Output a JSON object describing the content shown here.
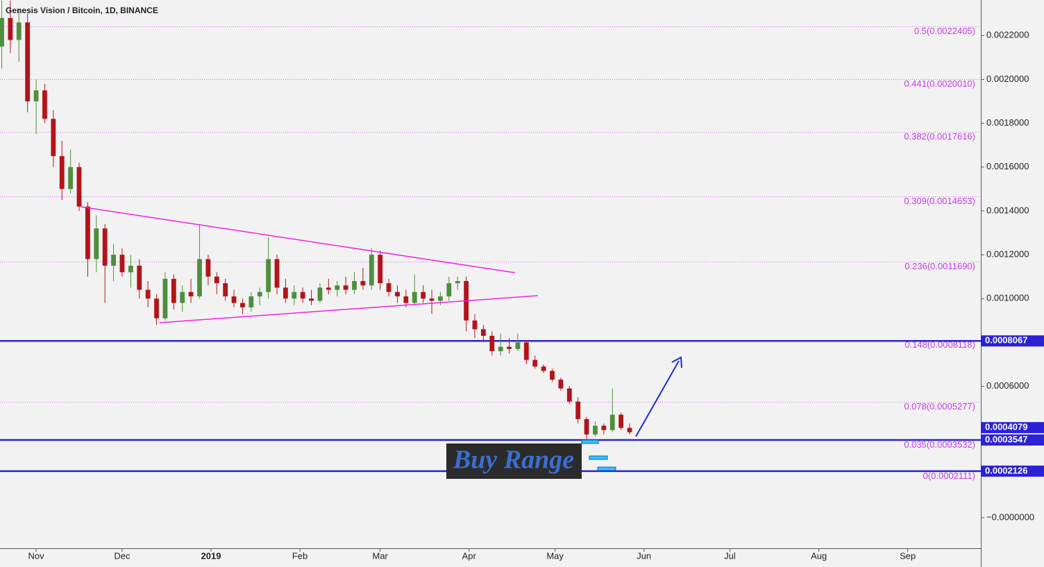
{
  "chart_data": {
    "type": "candlestick",
    "title": "Genesis Vision / Bitcoin, 1D, BINANCE",
    "annotation": "Buy Range",
    "up_color": "#4e8f3e",
    "down_color": "#b3141a",
    "fib_color": "#c33be8",
    "price_line_color": "#2b22d6",
    "x": [
      1,
      4,
      7,
      10,
      13,
      16,
      19,
      22,
      25,
      28,
      31,
      34,
      37,
      40,
      43,
      46,
      49,
      52,
      55,
      58,
      61,
      64,
      67,
      70,
      73,
      76,
      79,
      82,
      85,
      88,
      91,
      94,
      97,
      100,
      103,
      106,
      109,
      112,
      115,
      118,
      121,
      124,
      127,
      130,
      133,
      136,
      139,
      142,
      145,
      148,
      151,
      154,
      157,
      160,
      163,
      166,
      169,
      172,
      175,
      178,
      181,
      184,
      187,
      190,
      193,
      196,
      199,
      202,
      205,
      208,
      211,
      214,
      217,
      220
    ],
    "open": [
      0.00215,
      0.00228,
      0.00218,
      0.00226,
      0.0019,
      0.00195,
      0.00182,
      0.00165,
      0.0015,
      0.0016,
      0.00142,
      0.00118,
      0.00132,
      0.00115,
      0.0012,
      0.00112,
      0.00115,
      0.00104,
      0.001,
      0.00091,
      0.00109,
      0.00098,
      0.00103,
      0.00101,
      0.00118,
      0.0011,
      0.00107,
      0.00101,
      0.00098,
      0.00096,
      0.00101,
      0.00103,
      0.00118,
      0.00105,
      0.001,
      0.00103,
      0.001,
      0.00099,
      0.00105,
      0.00104,
      0.00106,
      0.00104,
      0.00108,
      0.00106,
      0.0012,
      0.00107,
      0.00103,
      0.00101,
      0.00098,
      0.00103,
      0.001,
      0.00099,
      0.00101,
      0.00107,
      0.00108,
      0.0009,
      0.00086,
      0.00083,
      0.00076,
      0.00078,
      0.00077,
      0.0008,
      0.00072,
      0.00069,
      0.00067,
      0.00063,
      0.00059,
      0.00053,
      0.00045,
      0.00038,
      0.00042,
      0.0004,
      0.00047,
      0.00041
    ],
    "high": [
      0.00236,
      0.00236,
      0.00232,
      0.0023,
      0.002,
      0.00198,
      0.00186,
      0.00172,
      0.00168,
      0.00162,
      0.00144,
      0.00138,
      0.00134,
      0.00125,
      0.00123,
      0.0012,
      0.00118,
      0.00108,
      0.00102,
      0.00112,
      0.00111,
      0.00106,
      0.00109,
      0.00134,
      0.0012,
      0.00112,
      0.00109,
      0.00104,
      0.001,
      0.00103,
      0.00105,
      0.00128,
      0.0012,
      0.00109,
      0.00106,
      0.00105,
      0.00104,
      0.00107,
      0.00109,
      0.00108,
      0.0011,
      0.00112,
      0.00114,
      0.00123,
      0.00122,
      0.00109,
      0.00106,
      0.00104,
      0.00111,
      0.00106,
      0.00104,
      0.00103,
      0.0011,
      0.0011,
      0.0011,
      0.00093,
      0.00088,
      0.00085,
      0.00084,
      0.00082,
      0.00084,
      0.00081,
      0.00074,
      0.0007,
      0.00068,
      0.00064,
      0.0006,
      0.00055,
      0.00046,
      0.00044,
      0.00043,
      0.00059,
      0.00048,
      0.00043
    ],
    "low": [
      0.00205,
      0.00212,
      0.00208,
      0.00185,
      0.00175,
      0.0018,
      0.0016,
      0.00145,
      0.00148,
      0.0014,
      0.0011,
      0.00112,
      0.00098,
      0.00108,
      0.0011,
      0.00105,
      0.001,
      0.00096,
      0.00088,
      0.0009,
      0.00095,
      0.00094,
      0.00098,
      0.001,
      0.00106,
      0.00102,
      0.00099,
      0.00096,
      0.00093,
      0.00094,
      0.00097,
      0.001,
      0.00102,
      0.00098,
      0.00097,
      0.00098,
      0.00097,
      0.00098,
      0.00102,
      0.00101,
      0.00102,
      0.00102,
      0.00104,
      0.00104,
      0.00104,
      0.00101,
      0.00098,
      0.00096,
      0.00097,
      0.00098,
      0.00093,
      0.00097,
      0.00099,
      0.00104,
      0.00085,
      0.00082,
      0.0008,
      0.00074,
      0.00074,
      0.00075,
      0.00076,
      0.0007,
      0.00068,
      0.00066,
      0.00062,
      0.00058,
      0.00052,
      0.00043,
      0.00036,
      0.00037,
      0.00038,
      0.00039,
      0.0004,
      0.00038
    ],
    "close": [
      0.00228,
      0.00218,
      0.00226,
      0.0019,
      0.00195,
      0.00182,
      0.00165,
      0.0015,
      0.0016,
      0.00142,
      0.00118,
      0.00132,
      0.00115,
      0.0012,
      0.00112,
      0.00115,
      0.00104,
      0.001,
      0.00091,
      0.00109,
      0.00098,
      0.00103,
      0.00101,
      0.00118,
      0.0011,
      0.00107,
      0.00101,
      0.00098,
      0.00096,
      0.00101,
      0.00103,
      0.00118,
      0.00105,
      0.001,
      0.00103,
      0.001,
      0.00099,
      0.00105,
      0.00104,
      0.00106,
      0.00104,
      0.00108,
      0.00106,
      0.0012,
      0.00107,
      0.00103,
      0.00101,
      0.00098,
      0.00103,
      0.001,
      0.00099,
      0.00101,
      0.00107,
      0.00108,
      0.0009,
      0.00086,
      0.00083,
      0.00076,
      0.00078,
      0.00077,
      0.0008,
      0.00072,
      0.00069,
      0.00067,
      0.00063,
      0.00059,
      0.00053,
      0.00045,
      0.00038,
      0.00042,
      0.0004,
      0.00047,
      0.00041,
      0.00039
    ],
    "xlim": [
      0.4,
      342.5
    ],
    "ylim": [
      -0.0001393,
      0.0023623
    ],
    "xticks": [
      {
        "value": 13,
        "label": "Nov"
      },
      {
        "value": 43,
        "label": "Dec"
      },
      {
        "value": 74,
        "label": "2019"
      },
      {
        "value": 105,
        "label": "Feb"
      },
      {
        "value": 133,
        "label": "Mar"
      },
      {
        "value": 164,
        "label": "Apr"
      },
      {
        "value": 194,
        "label": "May"
      },
      {
        "value": 225,
        "label": "Jun"
      },
      {
        "value": 255,
        "label": "Jul"
      },
      {
        "value": 286,
        "label": "Aug"
      },
      {
        "value": 317,
        "label": "Sep"
      }
    ],
    "yticks": [
      {
        "value": 0.0022,
        "label": "0.0022000"
      },
      {
        "value": 0.002,
        "label": "0.0020000"
      },
      {
        "value": 0.0018,
        "label": "0.0018000"
      },
      {
        "value": 0.0016,
        "label": "0.0016000"
      },
      {
        "value": 0.0014,
        "label": "0.0014000"
      },
      {
        "value": 0.0012,
        "label": "0.0012000"
      },
      {
        "value": 0.001,
        "label": "0.0010000"
      },
      {
        "value": 0.0006,
        "label": "0.0006000"
      },
      {
        "value": 0,
        "label": "−0.0000000"
      }
    ],
    "fib_levels": [
      {
        "value": 0.0022405,
        "label": "0.5(0.0022405)"
      },
      {
        "value": 0.002001,
        "label": "0.441(0.0020010)"
      },
      {
        "value": 0.0017616,
        "label": "0.382(0.0017616)"
      },
      {
        "value": 0.0014653,
        "label": "0.309(0.0014653)"
      },
      {
        "value": 0.001169,
        "label": "0.236(0.0011690)"
      },
      {
        "value": 0.0008118,
        "label": "0.148(0.0008118)"
      },
      {
        "value": 0.0005277,
        "label": "0.078(0.0005277)"
      },
      {
        "value": 0.0003532,
        "label": "0.035(0.0003532)"
      },
      {
        "value": 0.0002111,
        "label": "0(0.0002111)"
      }
    ],
    "price_lines": [
      {
        "value": 0.0008067,
        "label": "0.0008067"
      },
      {
        "value": 0.0003547,
        "label": "0.0003547"
      },
      {
        "value": 0.0002126,
        "label": "0.0002126"
      }
    ],
    "last_price": {
      "value": 0.0004079,
      "label": "0.0004079"
    }
  }
}
